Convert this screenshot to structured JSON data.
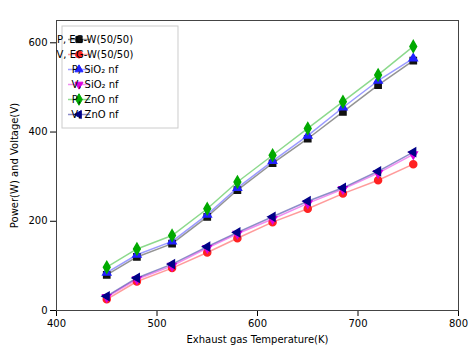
{
  "chart_data": {
    "type": "line",
    "xlabel": "Exhaust gas Temperature(K)",
    "ylabel": "Power(W) and Voltage(V)",
    "x": [
      450,
      480,
      515,
      550,
      580,
      615,
      650,
      685,
      720,
      755
    ],
    "series": [
      {
        "name": "P, EG-W(50/50)",
        "color": "#111111",
        "marker": "square",
        "values": [
          80,
          120,
          150,
          210,
          270,
          330,
          385,
          445,
          505,
          560
        ]
      },
      {
        "name": "V, EG-W(50/50)",
        "color": "#ff2222",
        "marker": "circle",
        "values": [
          25,
          65,
          95,
          130,
          162,
          198,
          228,
          262,
          292,
          328
        ]
      },
      {
        "name": "P, SiO₂ nf",
        "color": "#2222ff",
        "marker": "triangle-up",
        "values": [
          85,
          125,
          155,
          215,
          275,
          335,
          392,
          455,
          515,
          565
        ]
      },
      {
        "name": "V, SiO₂ nf",
        "color": "#dd00dd",
        "marker": "triangle-down",
        "values": [
          30,
          70,
          100,
          140,
          172,
          205,
          240,
          272,
          308,
          350
        ]
      },
      {
        "name": "P, ZnO nf",
        "color": "#00aa00",
        "marker": "diamond",
        "values": [
          97,
          138,
          168,
          228,
          288,
          348,
          408,
          468,
          528,
          592
        ]
      },
      {
        "name": "V, ZnO nf",
        "color": "#000088",
        "marker": "triangle-left",
        "values": [
          32,
          73,
          104,
          143,
          175,
          210,
          245,
          275,
          312,
          355
        ]
      }
    ],
    "xlim": [
      400,
      800
    ],
    "ylim": [
      0,
      650
    ],
    "xticks": [
      400,
      500,
      600,
      700,
      800
    ],
    "yticks": [
      0,
      200,
      400,
      600
    ],
    "grid": false,
    "legend": "upper left"
  }
}
